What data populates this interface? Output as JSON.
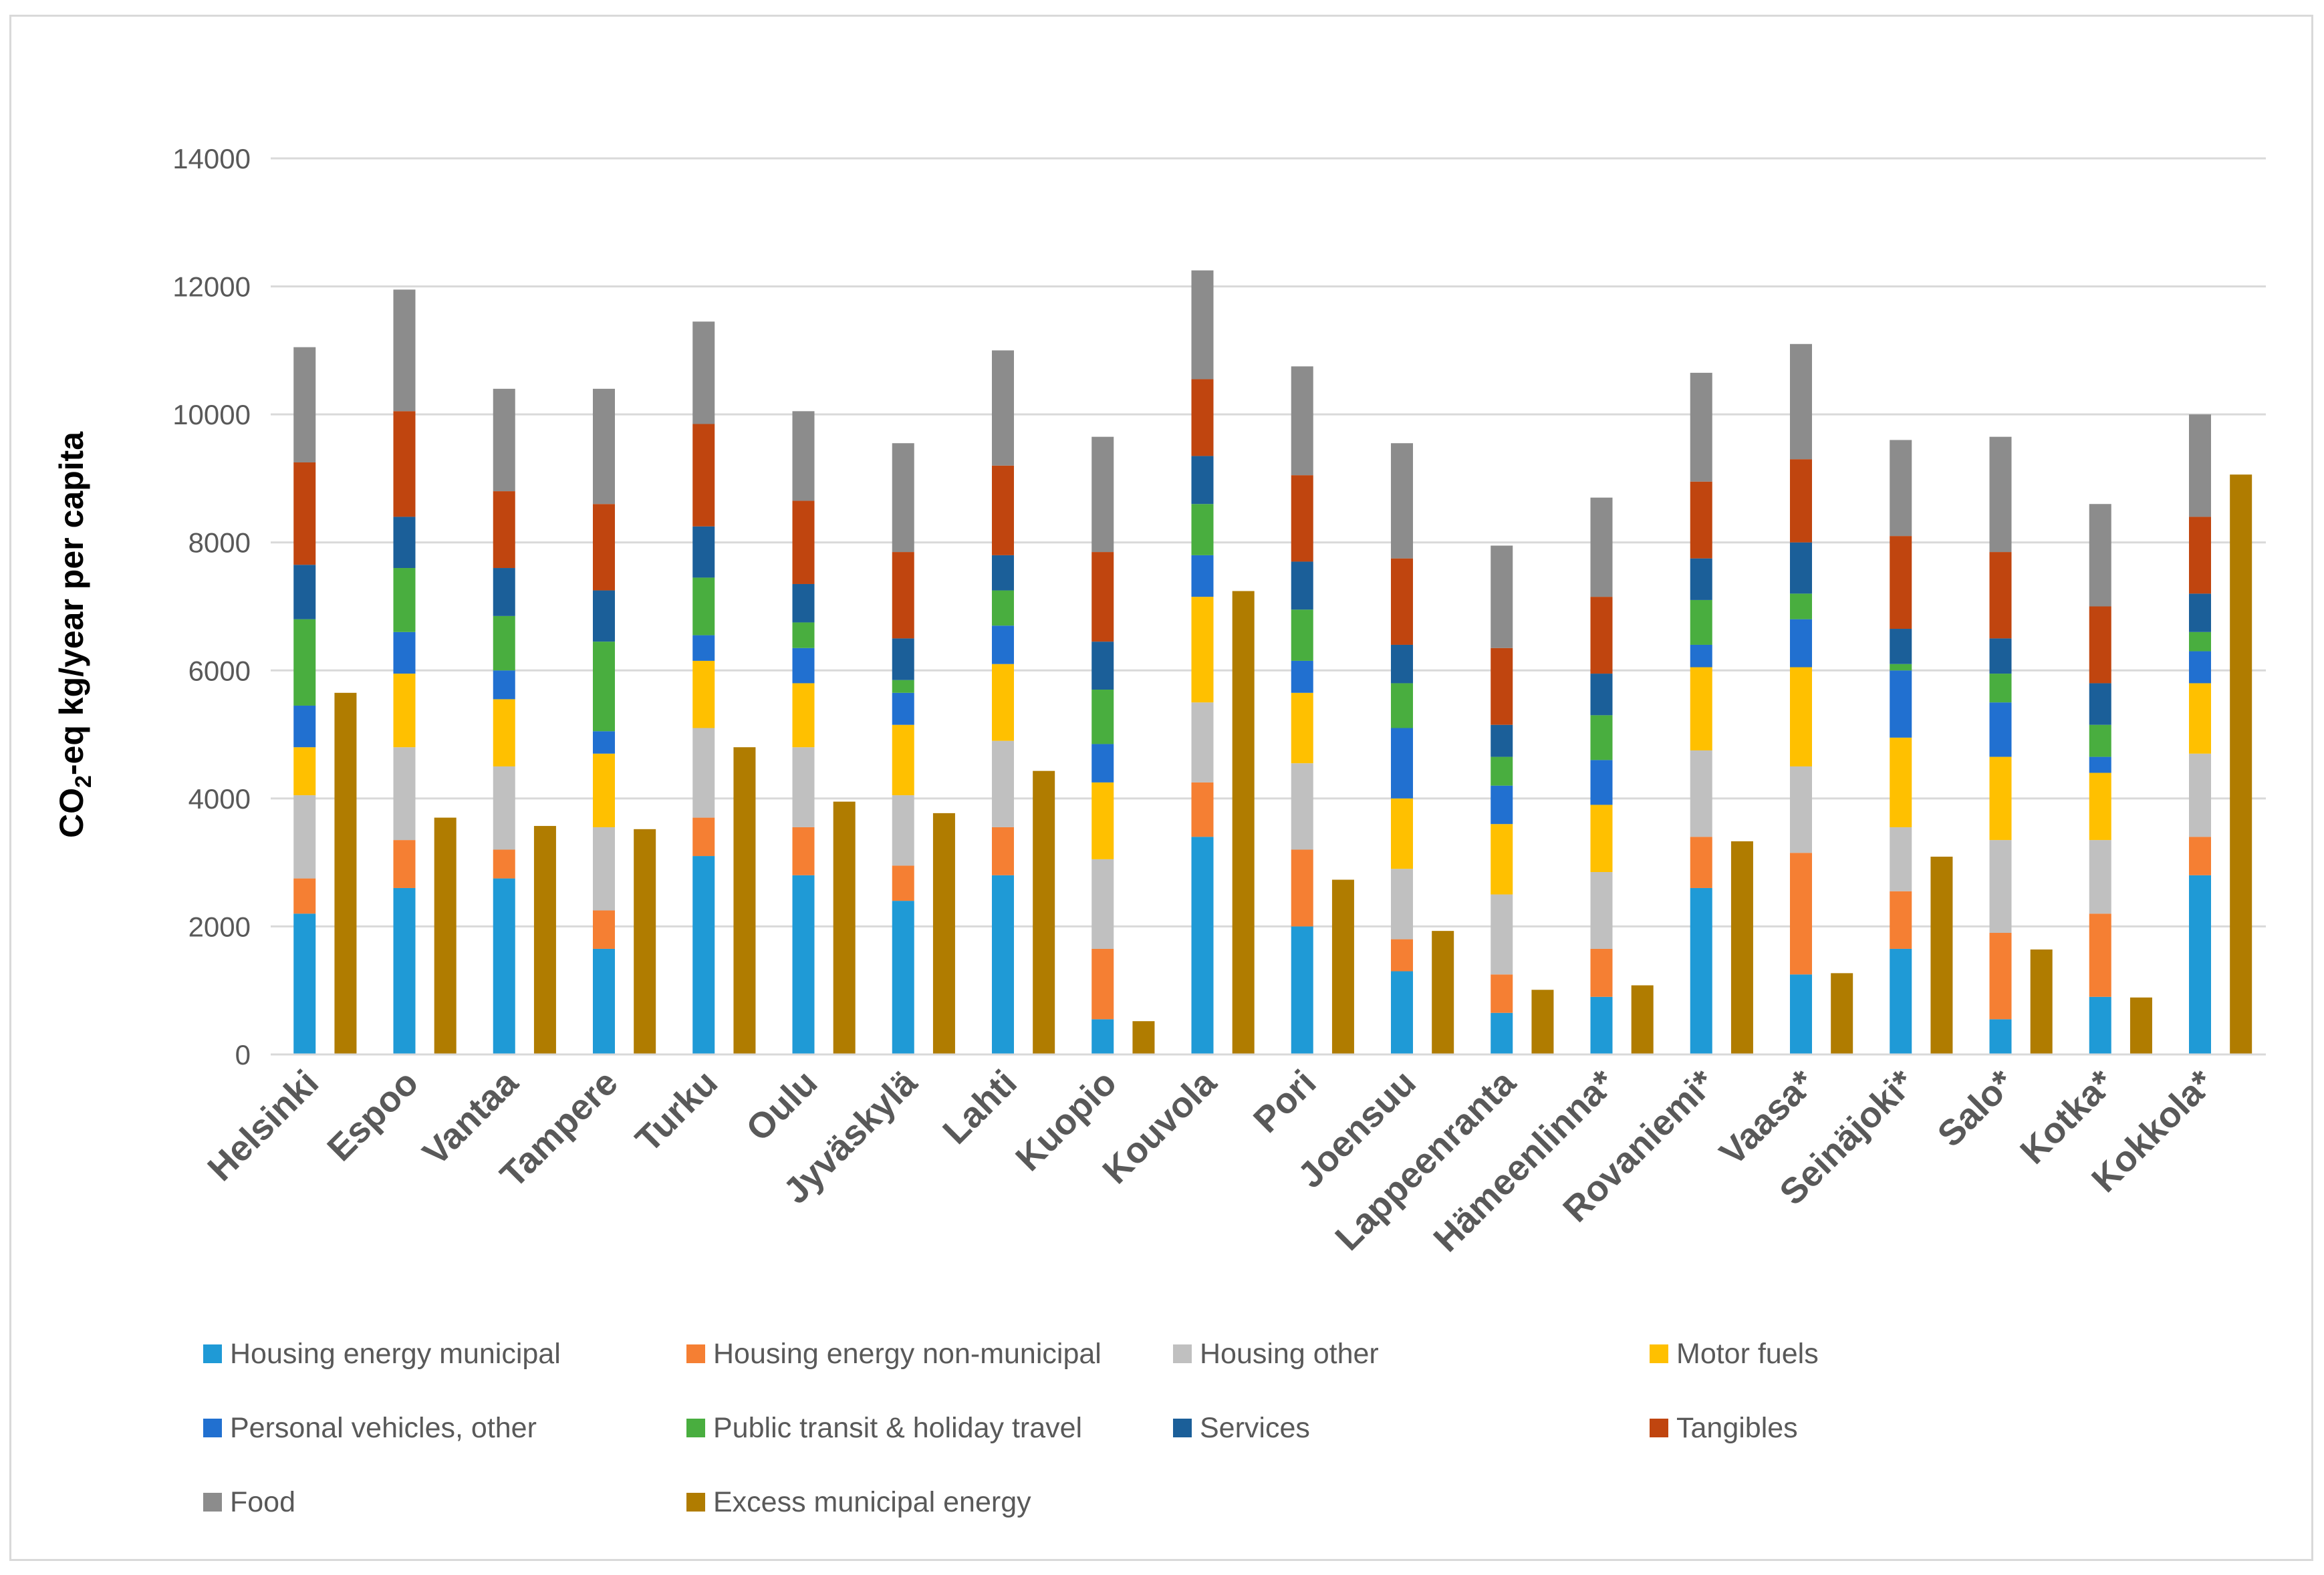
{
  "chart_data": {
    "type": "bar",
    "subtype": "stacked-with-side-bar",
    "title": "",
    "ylabel": "CO2-eq kg/year per capita",
    "ylabel_parts": {
      "main": "CO",
      "subscript": "2",
      "rest": "-eq kg/year per capita"
    },
    "ylim": [
      0,
      14000
    ],
    "yticks": [
      0,
      2000,
      4000,
      6000,
      8000,
      10000,
      12000,
      14000
    ],
    "ytick_labels": [
      "0",
      "2000",
      "4000",
      "6000",
      "8000",
      "10000",
      "12000",
      "14000"
    ],
    "grid": true,
    "legend_position": "bottom",
    "categories": [
      "Helsinki",
      "Espoo",
      "Vantaa",
      "Tampere",
      "Turku",
      "Oulu",
      "Jyväskylä",
      "Lahti",
      "Kuopio",
      "Kouvola",
      "Pori",
      "Joensuu",
      "Lappeenranta",
      "Hämeenlinna*",
      "Rovaniemi*",
      "Vaasa*",
      "Seinäjoki*",
      "Salo*",
      "Kotka*",
      "Kokkola*"
    ],
    "stacked_series": [
      {
        "name": "Housing energy municipal",
        "color": "#1f9ad6",
        "values": [
          2200,
          2600,
          2750,
          1650,
          3100,
          2800,
          2400,
          2800,
          550,
          3400,
          2000,
          1300,
          650,
          900,
          2600,
          1250,
          1650,
          550,
          900,
          2800
        ]
      },
      {
        "name": "Housing energy non-municipal",
        "color": "#f57f33",
        "values": [
          550,
          750,
          450,
          600,
          600,
          750,
          550,
          750,
          1100,
          850,
          1200,
          500,
          600,
          750,
          800,
          1900,
          900,
          1350,
          1300,
          600
        ]
      },
      {
        "name": "Housing other",
        "color": "#c0c0c0",
        "values": [
          1300,
          1450,
          1300,
          1300,
          1400,
          1250,
          1100,
          1350,
          1400,
          1250,
          1350,
          1100,
          1250,
          1200,
          1350,
          1350,
          1000,
          1450,
          1150,
          1300
        ]
      },
      {
        "name": "Motor fuels",
        "color": "#ffc000",
        "values": [
          750,
          1150,
          1050,
          1150,
          1050,
          1000,
          1100,
          1200,
          1200,
          1650,
          1100,
          1100,
          1100,
          1050,
          1300,
          1550,
          1400,
          1300,
          1050,
          1100
        ]
      },
      {
        "name": "Personal vehicles, other",
        "color": "#2170d0",
        "values": [
          650,
          650,
          450,
          350,
          400,
          550,
          500,
          600,
          600,
          650,
          500,
          1100,
          600,
          700,
          350,
          750,
          1050,
          850,
          250,
          500
        ]
      },
      {
        "name": "Public transit & holiday travel",
        "color": "#49ae3f",
        "values": [
          1350,
          1000,
          850,
          1400,
          900,
          400,
          200,
          550,
          850,
          800,
          800,
          700,
          450,
          700,
          700,
          400,
          100,
          450,
          500,
          300
        ]
      },
      {
        "name": "Services",
        "color": "#1b5f99",
        "values": [
          850,
          800,
          750,
          800,
          800,
          600,
          650,
          550,
          750,
          750,
          750,
          600,
          500,
          650,
          650,
          800,
          550,
          550,
          650,
          600
        ]
      },
      {
        "name": "Tangibles",
        "color": "#c0450f",
        "values": [
          1600,
          1650,
          1200,
          1350,
          1600,
          1300,
          1350,
          1400,
          1400,
          1200,
          1350,
          1350,
          1200,
          1200,
          1200,
          1300,
          1450,
          1350,
          1200,
          1200
        ]
      },
      {
        "name": "Food",
        "color": "#8c8c8c",
        "values": [
          1800,
          1900,
          1600,
          1800,
          1600,
          1400,
          1700,
          1800,
          1800,
          1700,
          1700,
          1800,
          1600,
          1550,
          1700,
          1800,
          1500,
          1800,
          1600,
          1600
        ]
      }
    ],
    "side_series": {
      "name": "Excess municipal energy",
      "color": "#b07c00",
      "values": [
        5650,
        3700,
        3570,
        3520,
        4800,
        3950,
        3770,
        4430,
        520,
        7240,
        2730,
        1930,
        1010,
        1080,
        3330,
        1270,
        3090,
        1640,
        890,
        9060
      ]
    },
    "legend": [
      {
        "label": "Housing energy municipal",
        "color": "#1f9ad6"
      },
      {
        "label": "Housing energy non-municipal",
        "color": "#f57f33"
      },
      {
        "label": "Housing other",
        "color": "#c0c0c0"
      },
      {
        "label": "Motor fuels",
        "color": "#ffc000"
      },
      {
        "label": "Personal vehicles, other",
        "color": "#2170d0"
      },
      {
        "label": "Public transit & holiday travel",
        "color": "#49ae3f"
      },
      {
        "label": "Services",
        "color": "#1b5f99"
      },
      {
        "label": "Tangibles",
        "color": "#c0450f"
      },
      {
        "label": "Food",
        "color": "#8c8c8c"
      },
      {
        "label": "Excess municipal energy",
        "color": "#b07c00"
      }
    ]
  }
}
